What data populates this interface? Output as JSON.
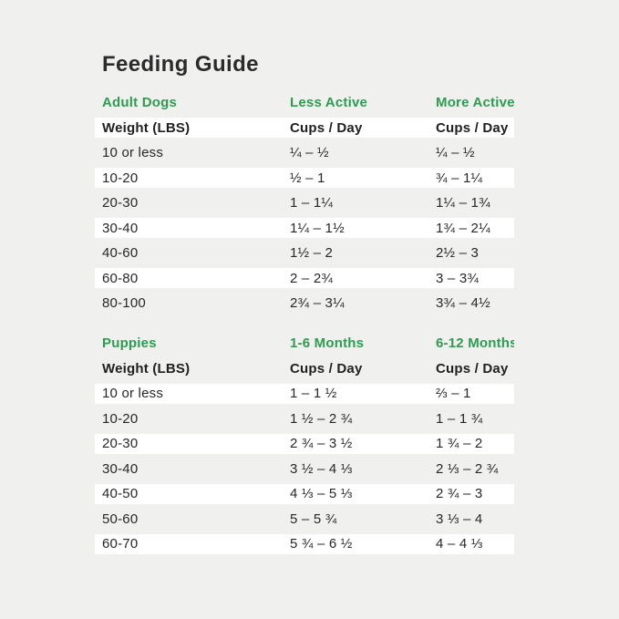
{
  "page": {
    "title": "Feeding Guide"
  },
  "theme": {
    "background": "#f0f0ee",
    "stripe": "#ffffff",
    "accent_green": "#2d9c50",
    "text_dark": "#2b2b2b"
  },
  "adult_table": {
    "section": "Adult Dogs",
    "col2_head": "Less Active",
    "col3_head": "More Active",
    "header": {
      "col1": "Weight (LBS)",
      "col2": "Cups / Day",
      "col3": "Cups / Day"
    },
    "rows": [
      {
        "col1": "10 or less",
        "col2": "¼ – ½",
        "col3": "¼ – ½"
      },
      {
        "col1": "10-20",
        "col2": "½ – 1",
        "col3": "¾ – 1¼"
      },
      {
        "col1": "20-30",
        "col2": "1 – 1¼",
        "col3": "1¼ – 1¾"
      },
      {
        "col1": "30-40",
        "col2": "1¼ – 1½",
        "col3": "1¾ – 2¼"
      },
      {
        "col1": "40-60",
        "col2": "1½ – 2",
        "col3": "2½ – 3"
      },
      {
        "col1": "60-80",
        "col2": "2 – 2¾",
        "col3": "3 – 3¾"
      },
      {
        "col1": "80-100",
        "col2": "2¾ – 3¼",
        "col3": "3¾ – 4½"
      }
    ]
  },
  "puppy_table": {
    "section": "Puppies",
    "col2_head": "1-6 Months",
    "col3_head": "6-12 Months",
    "header": {
      "col1": "Weight (LBS)",
      "col2": "Cups / Day",
      "col3": "Cups / Day"
    },
    "rows": [
      {
        "col1": "10 or less",
        "col2": "1 – 1 ½",
        "col3": "⅔ – 1"
      },
      {
        "col1": "10-20",
        "col2": "1 ½ – 2 ¾",
        "col3": "1 – 1 ¾"
      },
      {
        "col1": "20-30",
        "col2": "2 ¾ – 3 ½",
        "col3": "1 ¾ – 2"
      },
      {
        "col1": "30-40",
        "col2": "3 ½ – 4 ⅓",
        "col3": "2 ⅓ – 2 ¾"
      },
      {
        "col1": "40-50",
        "col2": "4 ⅓ – 5 ⅓",
        "col3": "2 ¾ – 3"
      },
      {
        "col1": "50-60",
        "col2": "5 – 5 ¾",
        "col3": "3 ⅓ – 4"
      },
      {
        "col1": "60-70",
        "col2": "5 ¾ – 6 ½",
        "col3": "4 – 4 ⅓"
      }
    ]
  }
}
